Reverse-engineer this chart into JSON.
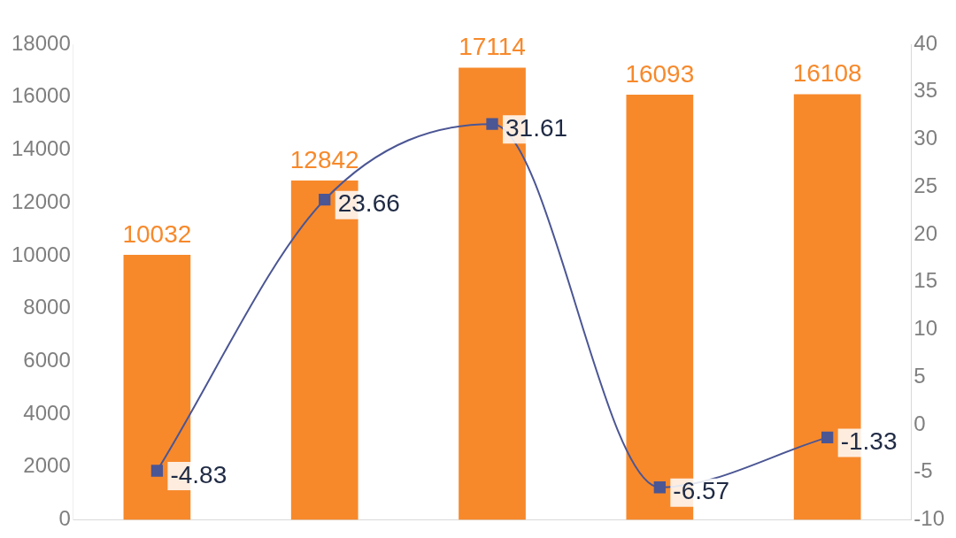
{
  "chart_data": {
    "type": "bar",
    "categories": [
      null,
      null,
      null,
      null,
      null
    ],
    "series": [
      {
        "color": "#f7892b",
        "values": [
          10032,
          12842,
          17114,
          16093,
          16108
        ]
      },
      {
        "type": "line",
        "axis": "y2",
        "color": "#4b5694",
        "values": [
          -4.83,
          23.66,
          31.61,
          -6.57,
          -1.33
        ]
      }
    ],
    "ylim": [
      0,
      18000
    ],
    "yticks": [
      0,
      2000,
      4000,
      6000,
      8000,
      10000,
      12000,
      14000,
      16000,
      18000
    ],
    "y2lim": [
      -10,
      40
    ],
    "y2ticks": [
      -10,
      -5,
      0,
      5,
      10,
      15,
      20,
      25,
      30,
      35,
      40
    ],
    "data_labels": true,
    "marker": "square"
  }
}
